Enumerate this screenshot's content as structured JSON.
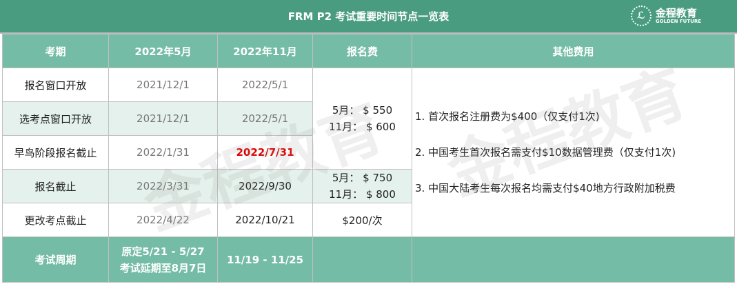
{
  "title": "FRM P2 考试重要时间节点一览表",
  "logo": {
    "name": "金程教育",
    "subtitle": "GOLDEN FUTURE",
    "seal": "ℒ"
  },
  "watermark": "金程教育",
  "headers": [
    "考期",
    "2022年5月",
    "2022年11月",
    "报名费",
    "其他费用"
  ],
  "rows": [
    {
      "label": "报名窗口开放",
      "may": "2021/12/1",
      "nov": "2022/5/1"
    },
    {
      "label": "选考点窗口开放",
      "may": "2021/12/1",
      "nov": "2022/5/1"
    },
    {
      "label": "早鸟阶段报名截止",
      "may": "2022/1/31",
      "nov": "2022/7/31"
    },
    {
      "label": "报名截止",
      "may": "2022/3/31",
      "nov": "2022/9/30"
    },
    {
      "label": "更改考点截止",
      "may": "2022/4/22",
      "nov": "2022/10/21"
    }
  ],
  "fees": {
    "early_may": "5月： $ 550",
    "early_nov": "11月： $ 600",
    "std_may": "5月： $ 750",
    "std_nov": "11月： $ 800",
    "change": "$200/次"
  },
  "other_fees": [
    "1. 首次报名注册费为$400（仅支付1次)",
    "2. 中国考生首次报名需支付$10数据管理费（仅支付1次)",
    "3. 中国大陆考生每次报名均需支付$40地方行政附加税费"
  ],
  "footer": {
    "label": "考试周期",
    "may_line1": "原定5/21 - 5/27",
    "may_line2": "考试延期至8月7日",
    "nov": "11/19 - 11/25"
  },
  "colors": {
    "title_bg": "#4a9c80",
    "header_bg": "#74bca5",
    "alt_row": "#e4f1ec",
    "highlight_red": "#e00000",
    "highlight_yellow": "#ffff00"
  }
}
